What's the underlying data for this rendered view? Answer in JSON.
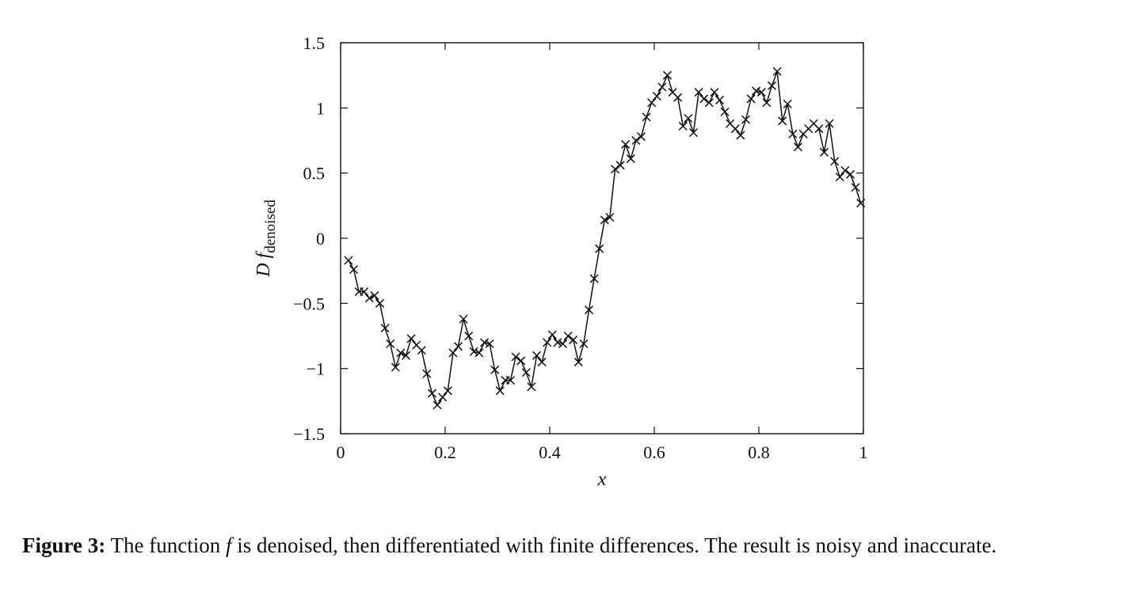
{
  "chart_data": {
    "type": "line",
    "marker": "x",
    "xlabel": "x",
    "ylabel": {
      "main": "D f",
      "subscript": "denoised"
    },
    "xlim": [
      0,
      1
    ],
    "ylim": [
      -1.5,
      1.5
    ],
    "xticks": [
      0,
      0.2,
      0.4,
      0.6,
      0.8,
      1
    ],
    "xtick_labels": [
      "0",
      "0.2",
      "0.4",
      "0.6",
      "0.8",
      "1"
    ],
    "yticks": [
      -1.5,
      -1,
      -0.5,
      0,
      0.5,
      1,
      1.5
    ],
    "ytick_labels": [
      "−1.5",
      "−1",
      "−0.5",
      "0",
      "0.5",
      "1",
      "1.5"
    ],
    "grid": false,
    "x": [
      0.015,
      0.025,
      0.035,
      0.045,
      0.055,
      0.065,
      0.075,
      0.085,
      0.095,
      0.105,
      0.115,
      0.125,
      0.135,
      0.145,
      0.155,
      0.165,
      0.175,
      0.185,
      0.195,
      0.205,
      0.215,
      0.225,
      0.235,
      0.245,
      0.255,
      0.265,
      0.275,
      0.285,
      0.295,
      0.305,
      0.315,
      0.325,
      0.335,
      0.345,
      0.355,
      0.365,
      0.375,
      0.385,
      0.395,
      0.405,
      0.415,
      0.425,
      0.435,
      0.445,
      0.455,
      0.465,
      0.475,
      0.485,
      0.495,
      0.505,
      0.515,
      0.525,
      0.535,
      0.545,
      0.555,
      0.565,
      0.575,
      0.585,
      0.595,
      0.605,
      0.615,
      0.625,
      0.635,
      0.645,
      0.655,
      0.665,
      0.675,
      0.685,
      0.695,
      0.705,
      0.715,
      0.725,
      0.735,
      0.745,
      0.755,
      0.765,
      0.775,
      0.785,
      0.795,
      0.805,
      0.815,
      0.825,
      0.835,
      0.845,
      0.855,
      0.865,
      0.875,
      0.885,
      0.895,
      0.905,
      0.915,
      0.925,
      0.935,
      0.945,
      0.955,
      0.965,
      0.975,
      0.985,
      0.995
    ],
    "y": [
      -0.17,
      -0.24,
      -0.41,
      -0.41,
      -0.46,
      -0.44,
      -0.5,
      -0.69,
      -0.81,
      -0.99,
      -0.88,
      -0.9,
      -0.77,
      -0.82,
      -0.86,
      -1.04,
      -1.19,
      -1.28,
      -1.22,
      -1.17,
      -0.88,
      -0.83,
      -0.62,
      -0.75,
      -0.87,
      -0.88,
      -0.8,
      -0.81,
      -1.01,
      -1.17,
      -1.09,
      -1.09,
      -0.91,
      -0.94,
      -1.03,
      -1.14,
      -0.9,
      -0.95,
      -0.8,
      -0.74,
      -0.8,
      -0.81,
      -0.75,
      -0.78,
      -0.95,
      -0.81,
      -0.55,
      -0.31,
      -0.08,
      0.14,
      0.16,
      0.53,
      0.56,
      0.72,
      0.61,
      0.75,
      0.78,
      0.93,
      1.04,
      1.09,
      1.16,
      1.25,
      1.12,
      1.08,
      0.86,
      0.92,
      0.81,
      1.12,
      1.07,
      1.04,
      1.12,
      1.06,
      0.97,
      0.88,
      0.84,
      0.79,
      0.91,
      1.07,
      1.13,
      1.12,
      1.04,
      1.17,
      1.28,
      0.9,
      1.03,
      0.8,
      0.7,
      0.8,
      0.84,
      0.88,
      0.84,
      0.66,
      0.88,
      0.59,
      0.47,
      0.52,
      0.49,
      0.39,
      0.27
    ]
  },
  "caption": {
    "label": "Figure 3:",
    "text_before": "The function ",
    "math_symbol": "f",
    "text_after": " is denoised, then differentiated with finite differences. The result is noisy and inaccurate."
  }
}
